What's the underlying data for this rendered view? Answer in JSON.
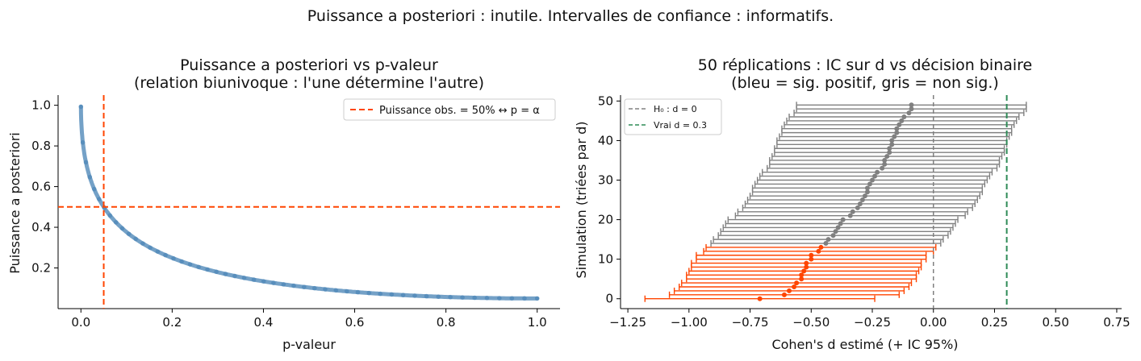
{
  "suptitle": "Puissance a posteriori : inutile. Intervalles de confiance : informatifs.",
  "chart_data": [
    {
      "type": "scatter",
      "title_line1": "Puissance a posteriori vs p-valeur",
      "title_line2": "(relation biunivoque : l'une détermine l'autre)",
      "xlabel": "p-valeur",
      "ylabel": "Puissance a posteriori",
      "xlim": [
        -0.05,
        1.05
      ],
      "ylim": [
        0.0,
        1.05
      ],
      "xticks": [
        0.0,
        0.2,
        0.4,
        0.6,
        0.8,
        1.0
      ],
      "xtick_labels": [
        "0.0",
        "0.2",
        "0.4",
        "0.6",
        "0.8",
        "1.0"
      ],
      "yticks": [
        0.2,
        0.4,
        0.6,
        0.8,
        1.0
      ],
      "ytick_labels": [
        "0.2",
        "0.4",
        "0.6",
        "0.8",
        "1.0"
      ],
      "vline_x": 0.05,
      "hline_y": 0.5,
      "legend": {
        "label": "Puissance obs. = 50% ↔ p = α",
        "position": "top-right"
      },
      "curve": {
        "description": "power vs p-value for two-sided z-test",
        "x": [
          0.0,
          0.001,
          0.005,
          0.01,
          0.02,
          0.03,
          0.05,
          0.08,
          0.1,
          0.15,
          0.2,
          0.3,
          0.4,
          0.5,
          0.6,
          0.7,
          0.8,
          0.9,
          1.0
        ],
        "y": [
          0.99,
          0.91,
          0.8,
          0.73,
          0.64,
          0.58,
          0.5,
          0.42,
          0.38,
          0.31,
          0.26,
          0.19,
          0.14,
          0.11,
          0.09,
          0.07,
          0.06,
          0.055,
          0.05
        ]
      },
      "colors": {
        "points": "#4682b4",
        "reference": "#ff4500"
      }
    },
    {
      "type": "scatter",
      "title_line1": "50 réplications : IC sur d vs décision binaire",
      "title_line2": "(bleu = sig. positif, gris = non sig.)",
      "xlabel": "Cohen's d estimé (+ IC 95%)",
      "ylabel": "Simulation (triées par d)",
      "xlim": [
        -1.28,
        0.77
      ],
      "ylim": [
        -2.5,
        51.5
      ],
      "xticks": [
        -1.25,
        -1.0,
        -0.75,
        -0.5,
        -0.25,
        0.0,
        0.25,
        0.5,
        0.75
      ],
      "xtick_labels": [
        "−1.25",
        "−1.00",
        "−0.75",
        "−0.50",
        "−0.25",
        "0.00",
        "0.25",
        "0.50",
        "0.75"
      ],
      "yticks": [
        0,
        10,
        20,
        30,
        40,
        50
      ],
      "ytick_labels": [
        "0",
        "10",
        "20",
        "30",
        "40",
        "50"
      ],
      "h0_line": 0.0,
      "true_d_line": 0.3,
      "legend": [
        {
          "label": "H₀ : d = 0",
          "style": "dashed",
          "color": "#808080"
        },
        {
          "label": "Vrai d = 0.3",
          "style": "dashed",
          "color": "#2e8b57"
        }
      ],
      "sig_count": 14,
      "d_values": [
        -0.71,
        -0.61,
        -0.59,
        -0.57,
        -0.56,
        -0.54,
        -0.54,
        -0.53,
        -0.52,
        -0.52,
        -0.5,
        -0.5,
        -0.47,
        -0.46,
        -0.44,
        -0.43,
        -0.41,
        -0.4,
        -0.39,
        -0.38,
        -0.37,
        -0.34,
        -0.33,
        -0.31,
        -0.3,
        -0.29,
        -0.28,
        -0.27,
        -0.27,
        -0.26,
        -0.25,
        -0.24,
        -0.23,
        -0.21,
        -0.2,
        -0.2,
        -0.19,
        -0.18,
        -0.18,
        -0.17,
        -0.17,
        -0.16,
        -0.15,
        -0.15,
        -0.14,
        -0.13,
        -0.12,
        -0.1,
        -0.09,
        -0.09
      ],
      "colors": {
        "sig": "#ff4500",
        "nonsig": "#808080",
        "h0": "#808080",
        "true_d": "#2e8b57"
      }
    }
  ]
}
